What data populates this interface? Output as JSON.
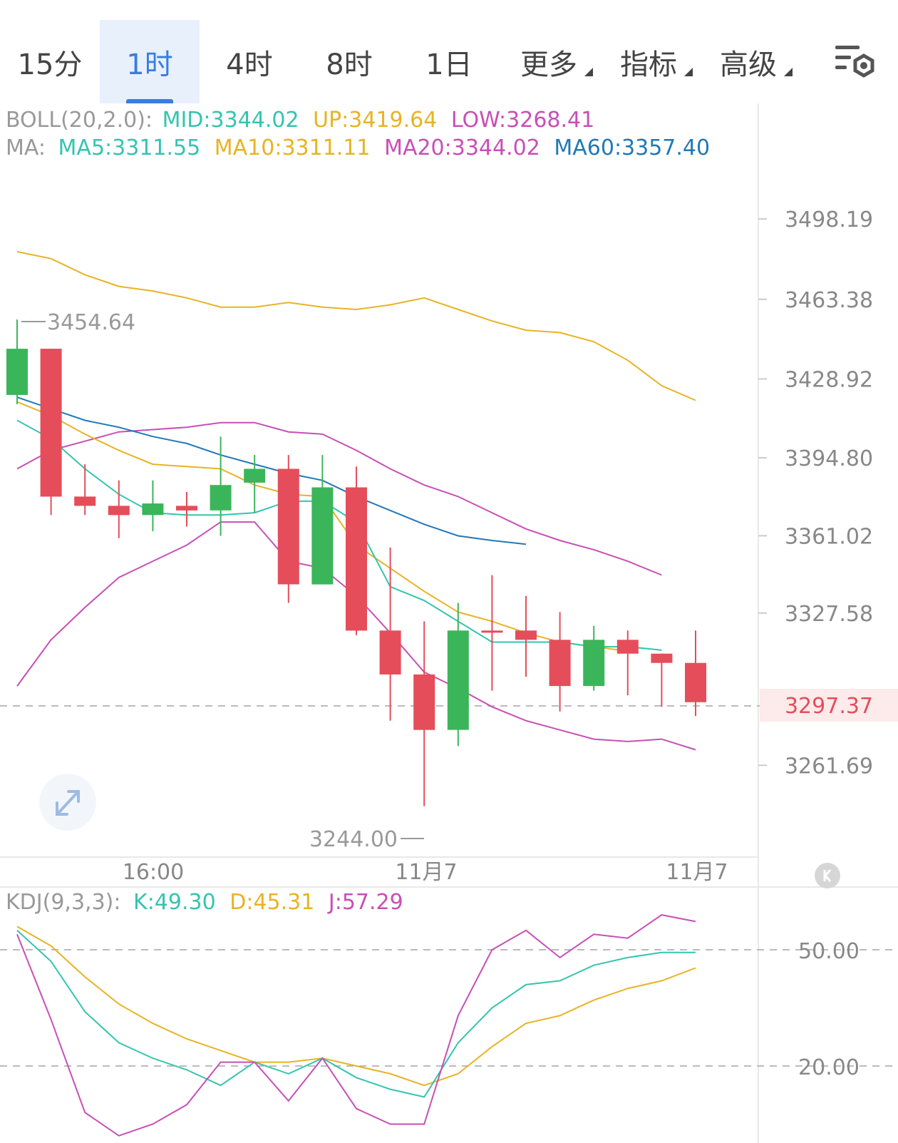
{
  "tabs": [
    {
      "label": "15分",
      "active": false,
      "dropdown": false
    },
    {
      "label": "1时",
      "active": true,
      "dropdown": false
    },
    {
      "label": "4时",
      "active": false,
      "dropdown": false
    },
    {
      "label": "8时",
      "active": false,
      "dropdown": false
    },
    {
      "label": "1日",
      "active": false,
      "dropdown": false
    },
    {
      "label": "更多",
      "active": false,
      "dropdown": true
    },
    {
      "label": "指标",
      "active": false,
      "dropdown": true
    },
    {
      "label": "高级",
      "active": false,
      "dropdown": true
    }
  ],
  "settings_icon": "chart-settings-icon",
  "legend": {
    "boll_prefix": "BOLL(20,2.0):",
    "boll_mid": "MID:3344.02",
    "boll_up": "UP:3419.64",
    "boll_low": "LOW:3268.41",
    "ma_prefix": "MA:",
    "ma5": "MA5:3311.55",
    "ma10": "MA10:3311.11",
    "ma20": "MA20:3344.02",
    "ma60": "MA60:3357.40",
    "kdj_prefix": "KDJ(9,3,3):",
    "kdj_k": "K:49.30",
    "kdj_d": "D:45.31",
    "kdj_j": "J:57.29"
  },
  "colors": {
    "up": "#3bb55a",
    "down": "#e54d5b",
    "ma5": "#35c4b0",
    "ma10": "#e8b323",
    "ma20": "#c84fb5",
    "ma60": "#2278b5",
    "grid": "#dddddd",
    "price_tag": "#e54d5b"
  },
  "price_axis": {
    "ticks": [
      "3498.19",
      "3463.38",
      "3428.92",
      "3394.80",
      "3361.02",
      "3327.58",
      "3261.69"
    ],
    "current": "3297.37"
  },
  "annotations": {
    "high": "3454.64",
    "low": "3244.00"
  },
  "time_axis": [
    "16:00",
    "11月7",
    "11月7"
  ],
  "kdj_axis": [
    "50.00",
    "20.00"
  ],
  "chart_data": {
    "type": "candlestick",
    "y_axis_ticks": [
      3498.19,
      3463.38,
      3428.92,
      3394.8,
      3361.02,
      3327.58,
      3261.69
    ],
    "current_price": 3297.37,
    "candles": [
      {
        "open": 3422,
        "close": 3442,
        "high": 3454.64,
        "low": 3418
      },
      {
        "open": 3442,
        "close": 3378,
        "high": 3442,
        "low": 3370
      },
      {
        "open": 3378,
        "close": 3374,
        "high": 3392,
        "low": 3370
      },
      {
        "open": 3374,
        "close": 3370,
        "high": 3385,
        "low": 3360
      },
      {
        "open": 3370,
        "close": 3375,
        "high": 3385,
        "low": 3363
      },
      {
        "open": 3374,
        "close": 3372,
        "high": 3380,
        "low": 3365
      },
      {
        "open": 3372,
        "close": 3383,
        "high": 3404,
        "low": 3361
      },
      {
        "open": 3384,
        "close": 3390,
        "high": 3396,
        "low": 3371
      },
      {
        "open": 3390,
        "close": 3340,
        "high": 3396,
        "low": 3332
      },
      {
        "open": 3340,
        "close": 3382,
        "high": 3396,
        "low": 3340
      },
      {
        "open": 3382,
        "close": 3320,
        "high": 3391,
        "low": 3318
      },
      {
        "open": 3320,
        "close": 3301,
        "high": 3356,
        "low": 3281
      },
      {
        "open": 3301,
        "close": 3277,
        "high": 3324,
        "low": 3244.0
      },
      {
        "open": 3277,
        "close": 3320,
        "high": 3332,
        "low": 3270
      },
      {
        "open": 3320,
        "close": 3320,
        "high": 3344,
        "low": 3294
      },
      {
        "open": 3320,
        "close": 3316,
        "high": 3335,
        "low": 3300
      },
      {
        "open": 3316,
        "close": 3296,
        "high": 3328,
        "low": 3285
      },
      {
        "open": 3296,
        "close": 3316,
        "high": 3322,
        "low": 3294
      },
      {
        "open": 3316,
        "close": 3310,
        "high": 3320,
        "low": 3292
      },
      {
        "open": 3310,
        "close": 3306,
        "high": 3310,
        "low": 3287
      },
      {
        "open": 3306,
        "close": 3289,
        "high": 3320,
        "low": 3283
      }
    ],
    "boll_up": [
      3484,
      3481,
      3474,
      3469,
      3467,
      3464,
      3460,
      3460,
      3462,
      3460,
      3459,
      3461,
      3464,
      3459,
      3454,
      3450,
      3449,
      3445,
      3437,
      3426,
      3419.64
    ],
    "boll_mid": [
      3390,
      3398,
      3402,
      3406,
      3407,
      3408,
      3410,
      3410,
      3406,
      3405,
      3398,
      3390,
      3383,
      3378,
      3371,
      3364,
      3359,
      3355,
      3350,
      3344.02,
      null
    ],
    "boll_low": [
      3296,
      3316,
      3330,
      3343,
      3350,
      3357,
      3367,
      3367,
      3350,
      3347,
      3335,
      3319,
      3302,
      3295,
      3287,
      3281,
      3277,
      3273,
      3272,
      3273,
      3268.41
    ],
    "ma5": [
      3411,
      3403,
      3390,
      3379,
      3371,
      3370,
      3370,
      3371,
      3376,
      3376,
      3367,
      3339,
      3333,
      3324,
      3315,
      3315,
      3315,
      3313,
      3313,
      3311.55,
      null
    ],
    "ma10": [
      3419,
      3413,
      3405,
      3398,
      3392,
      3391,
      3390,
      3383,
      3379,
      3378,
      3357,
      3347,
      3337,
      3328,
      3324,
      3319,
      3315,
      3313,
      3311.11,
      null,
      null
    ],
    "ma60": [
      3421,
      3416,
      3411,
      3408,
      3404,
      3401,
      3396,
      3392,
      3388,
      3385,
      3378,
      3372,
      3366,
      3361,
      3359,
      3357.4,
      null,
      null,
      null,
      null,
      null
    ],
    "kdj": {
      "k": [
        55,
        47,
        34,
        26,
        22,
        19,
        15,
        21,
        18,
        22,
        17,
        14,
        12,
        26,
        35,
        41,
        42,
        46,
        48,
        49.3,
        49.3
      ],
      "d": [
        56,
        51,
        43,
        36,
        31,
        27,
        24,
        21,
        21,
        22,
        20,
        18,
        15,
        18,
        25,
        31,
        33,
        37,
        40,
        42,
        45.31
      ],
      "j": [
        54,
        32,
        8,
        2,
        5,
        10,
        21,
        21,
        11,
        22,
        9,
        5,
        5,
        33,
        50,
        55,
        48,
        54,
        53,
        59,
        57.29
      ]
    },
    "time_labels": [
      "16:00",
      "11月7",
      "11月7"
    ],
    "kdj_ticks": [
      50.0,
      20.0
    ]
  }
}
